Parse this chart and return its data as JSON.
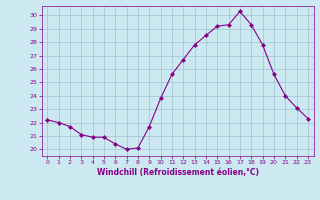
{
  "x": [
    0,
    1,
    2,
    3,
    4,
    5,
    6,
    7,
    8,
    9,
    10,
    11,
    12,
    13,
    14,
    15,
    16,
    17,
    18,
    19,
    20,
    21,
    22,
    23
  ],
  "y": [
    22.2,
    22.0,
    21.7,
    21.1,
    20.9,
    20.9,
    20.4,
    20.0,
    20.1,
    21.7,
    23.8,
    25.6,
    26.7,
    27.8,
    28.5,
    29.2,
    29.3,
    30.3,
    29.3,
    27.8,
    25.6,
    24.0,
    23.1,
    22.3
  ],
  "line_color": "#880088",
  "marker": "D",
  "marker_size": 2,
  "bg_color": "#cce8f0",
  "grid_color": "#99bbcc",
  "xlabel": "Windchill (Refroidissement éolien,°C)",
  "xlabel_color": "#880088",
  "tick_color": "#880088",
  "xlim": [
    -0.5,
    23.5
  ],
  "ylim": [
    19.5,
    30.7
  ],
  "yticks": [
    20,
    21,
    22,
    23,
    24,
    25,
    26,
    27,
    28,
    29,
    30
  ],
  "xticks": [
    0,
    1,
    2,
    3,
    4,
    5,
    6,
    7,
    8,
    9,
    10,
    11,
    12,
    13,
    14,
    15,
    16,
    17,
    18,
    19,
    20,
    21,
    22,
    23
  ]
}
